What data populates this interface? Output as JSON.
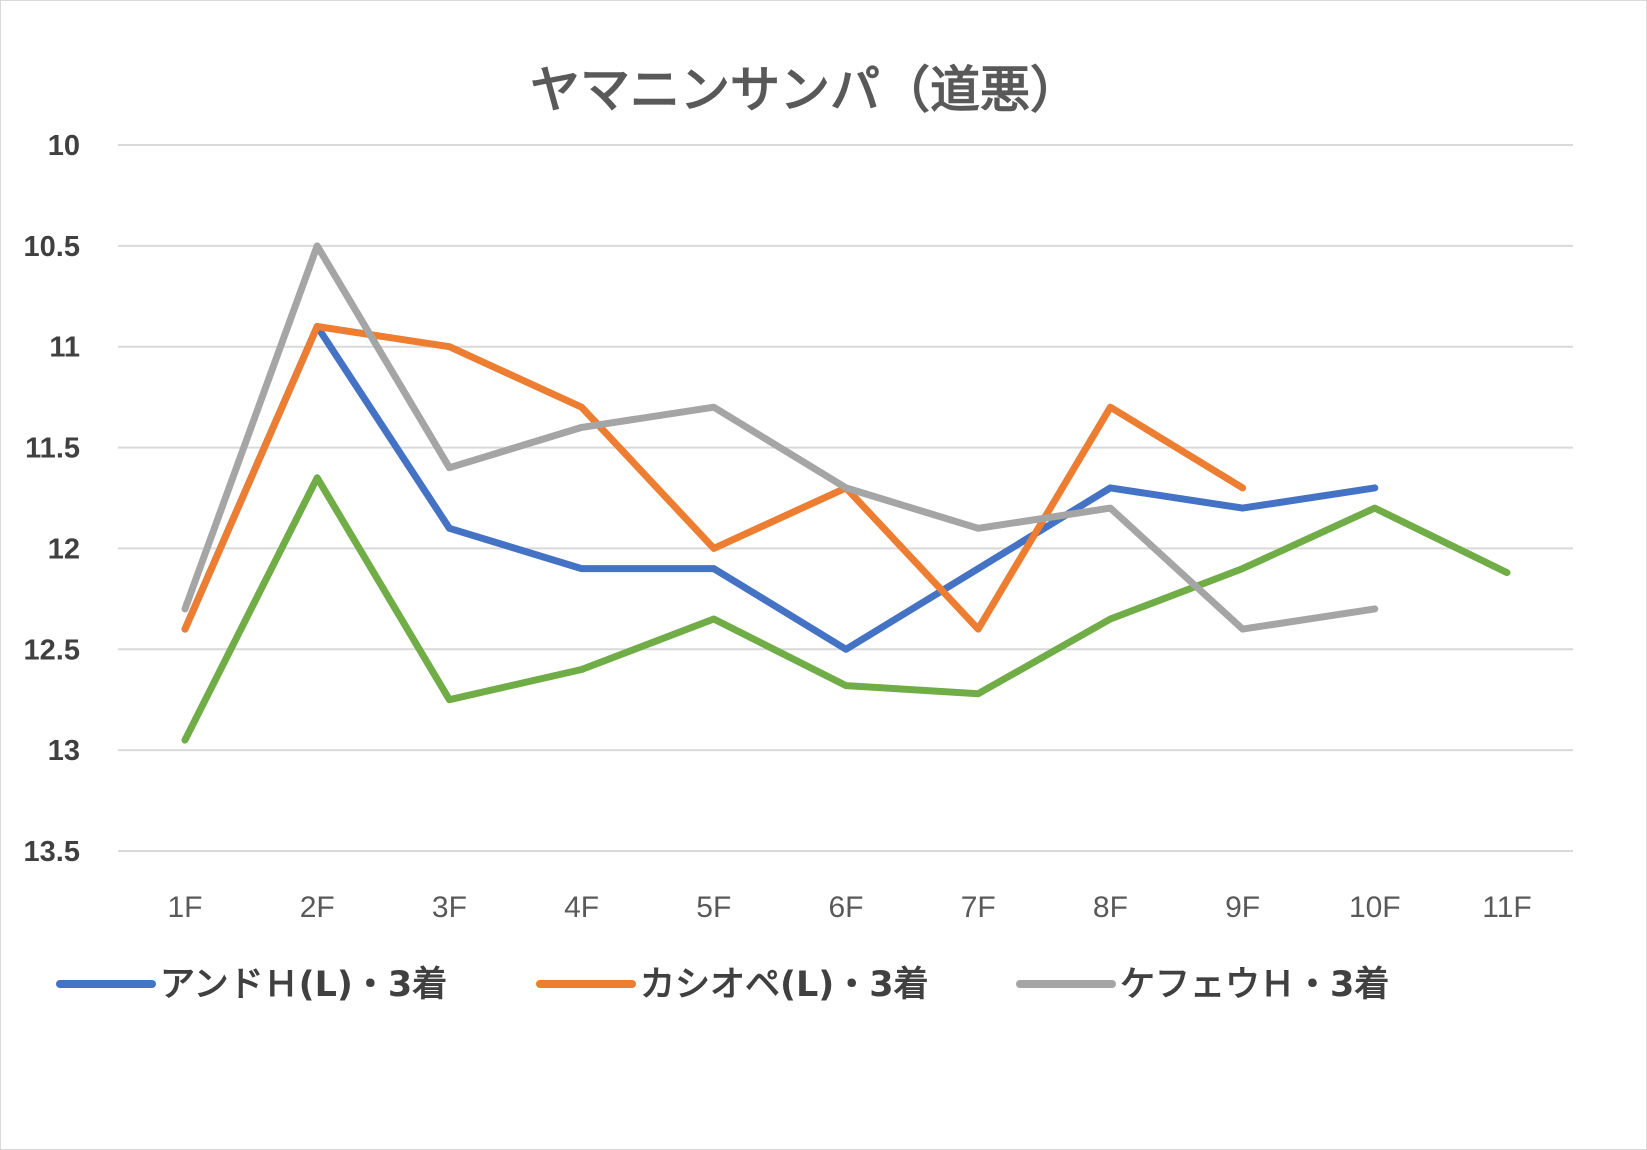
{
  "chart_data": {
    "type": "line",
    "title": "ヤマニンサンパ（道悪）",
    "xlabel": "",
    "ylabel": "",
    "categories": [
      "1F",
      "2F",
      "3F",
      "4F",
      "5F",
      "6F",
      "7F",
      "8F",
      "9F",
      "10F",
      "11F"
    ],
    "yticks": [
      "10",
      "10.5",
      "11",
      "11.5",
      "12",
      "12.5",
      "13",
      "13.5"
    ],
    "ylim": [
      10,
      13.5
    ],
    "y_inverted": true,
    "grid": true,
    "legend_position": "bottom",
    "series": [
      {
        "name": "アンドＨ(L)・3着",
        "color": "#4472c4",
        "in_legend": true,
        "values": [
          12.4,
          10.9,
          11.9,
          12.1,
          12.1,
          12.5,
          12.1,
          11.7,
          11.8,
          11.7,
          null
        ]
      },
      {
        "name": "カシオペ(L)・3着",
        "color": "#ed7d31",
        "in_legend": true,
        "values": [
          12.4,
          10.9,
          11.0,
          11.3,
          12.0,
          11.7,
          12.4,
          11.3,
          11.7,
          null,
          null
        ]
      },
      {
        "name": "ケフェウＨ・3着",
        "color": "#a5a5a5",
        "in_legend": true,
        "values": [
          12.3,
          10.5,
          11.6,
          11.4,
          11.3,
          11.7,
          11.9,
          11.8,
          12.4,
          12.3,
          null
        ]
      },
      {
        "name": "",
        "color": "#70ad47",
        "in_legend": false,
        "values": [
          12.95,
          11.65,
          12.75,
          12.6,
          12.35,
          12.68,
          12.72,
          12.35,
          12.1,
          11.8,
          12.12
        ]
      }
    ]
  }
}
